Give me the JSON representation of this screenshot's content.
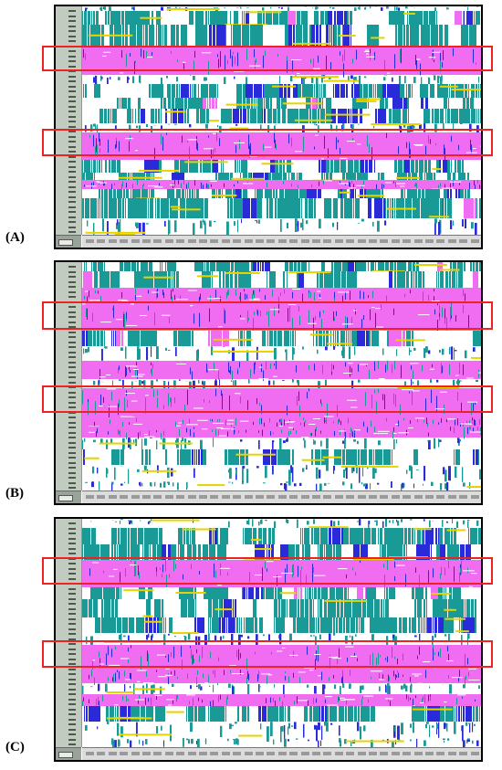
{
  "figure": {
    "panels": [
      {
        "label": "(A)"
      },
      {
        "label": "(B)"
      },
      {
        "label": "(C)"
      }
    ],
    "colors": {
      "magenta": "#f06cf0",
      "teal": "#1a9a96",
      "blue": "#2a2ad8",
      "yellow": "#e6d300",
      "highlight_box": "#ee2222",
      "row_axis": "#c2cbbf"
    }
  }
}
